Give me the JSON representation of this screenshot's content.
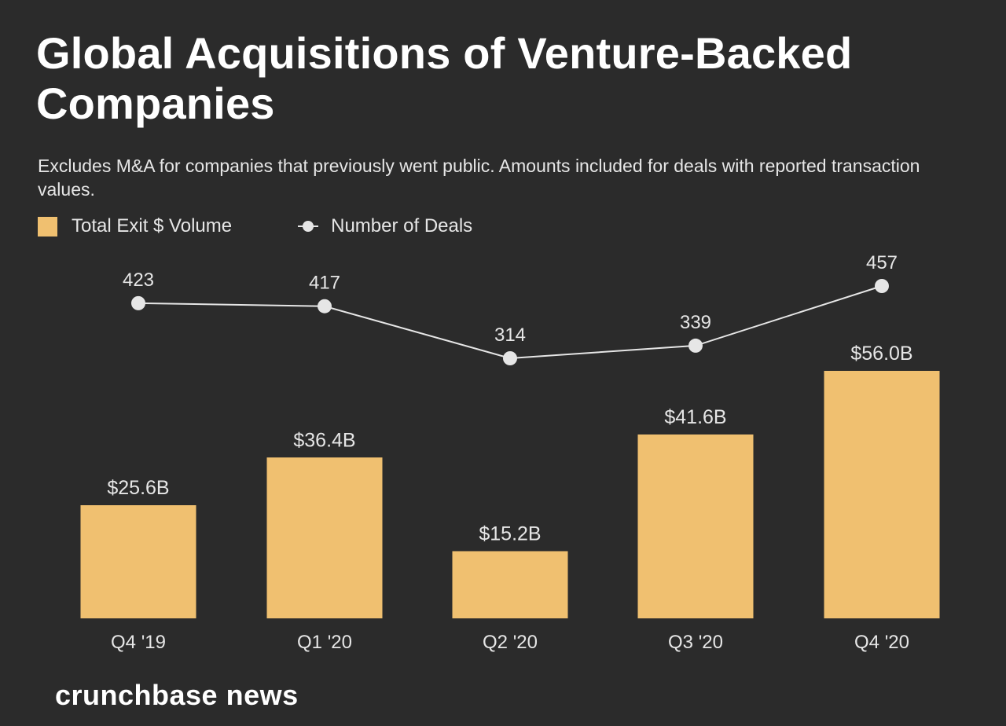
{
  "chart_data": {
    "type": "bar",
    "title": "Global Acquisitions of Venture-Backed Companies",
    "subtitle": "Excludes M&A for companies that previously went public. Amounts included for deals with reported transaction values.",
    "categories": [
      "Q4 '19",
      "Q1 '20",
      "Q2 '20",
      "Q3 '20",
      "Q4 '20"
    ],
    "series": [
      {
        "name": "Total Exit $ Volume",
        "kind": "bar",
        "unit": "$B",
        "values": [
          25.6,
          36.4,
          15.2,
          41.6,
          56.0
        ],
        "labels": [
          "$25.6B",
          "$36.4B",
          "$15.2B",
          "$41.6B",
          "$56.0B"
        ],
        "color": "#f0c070"
      },
      {
        "name": "Number of Deals",
        "kind": "line",
        "values": [
          423,
          417,
          314,
          339,
          457
        ],
        "labels": [
          "423",
          "417",
          "314",
          "339",
          "457"
        ],
        "color": "#e6e6e6"
      }
    ],
    "bar_ylim": [
      0,
      56.0
    ],
    "line_ylim": [
      314,
      457
    ],
    "legend_position": "top-left",
    "grid": false
  },
  "brand": "crunchbase news"
}
